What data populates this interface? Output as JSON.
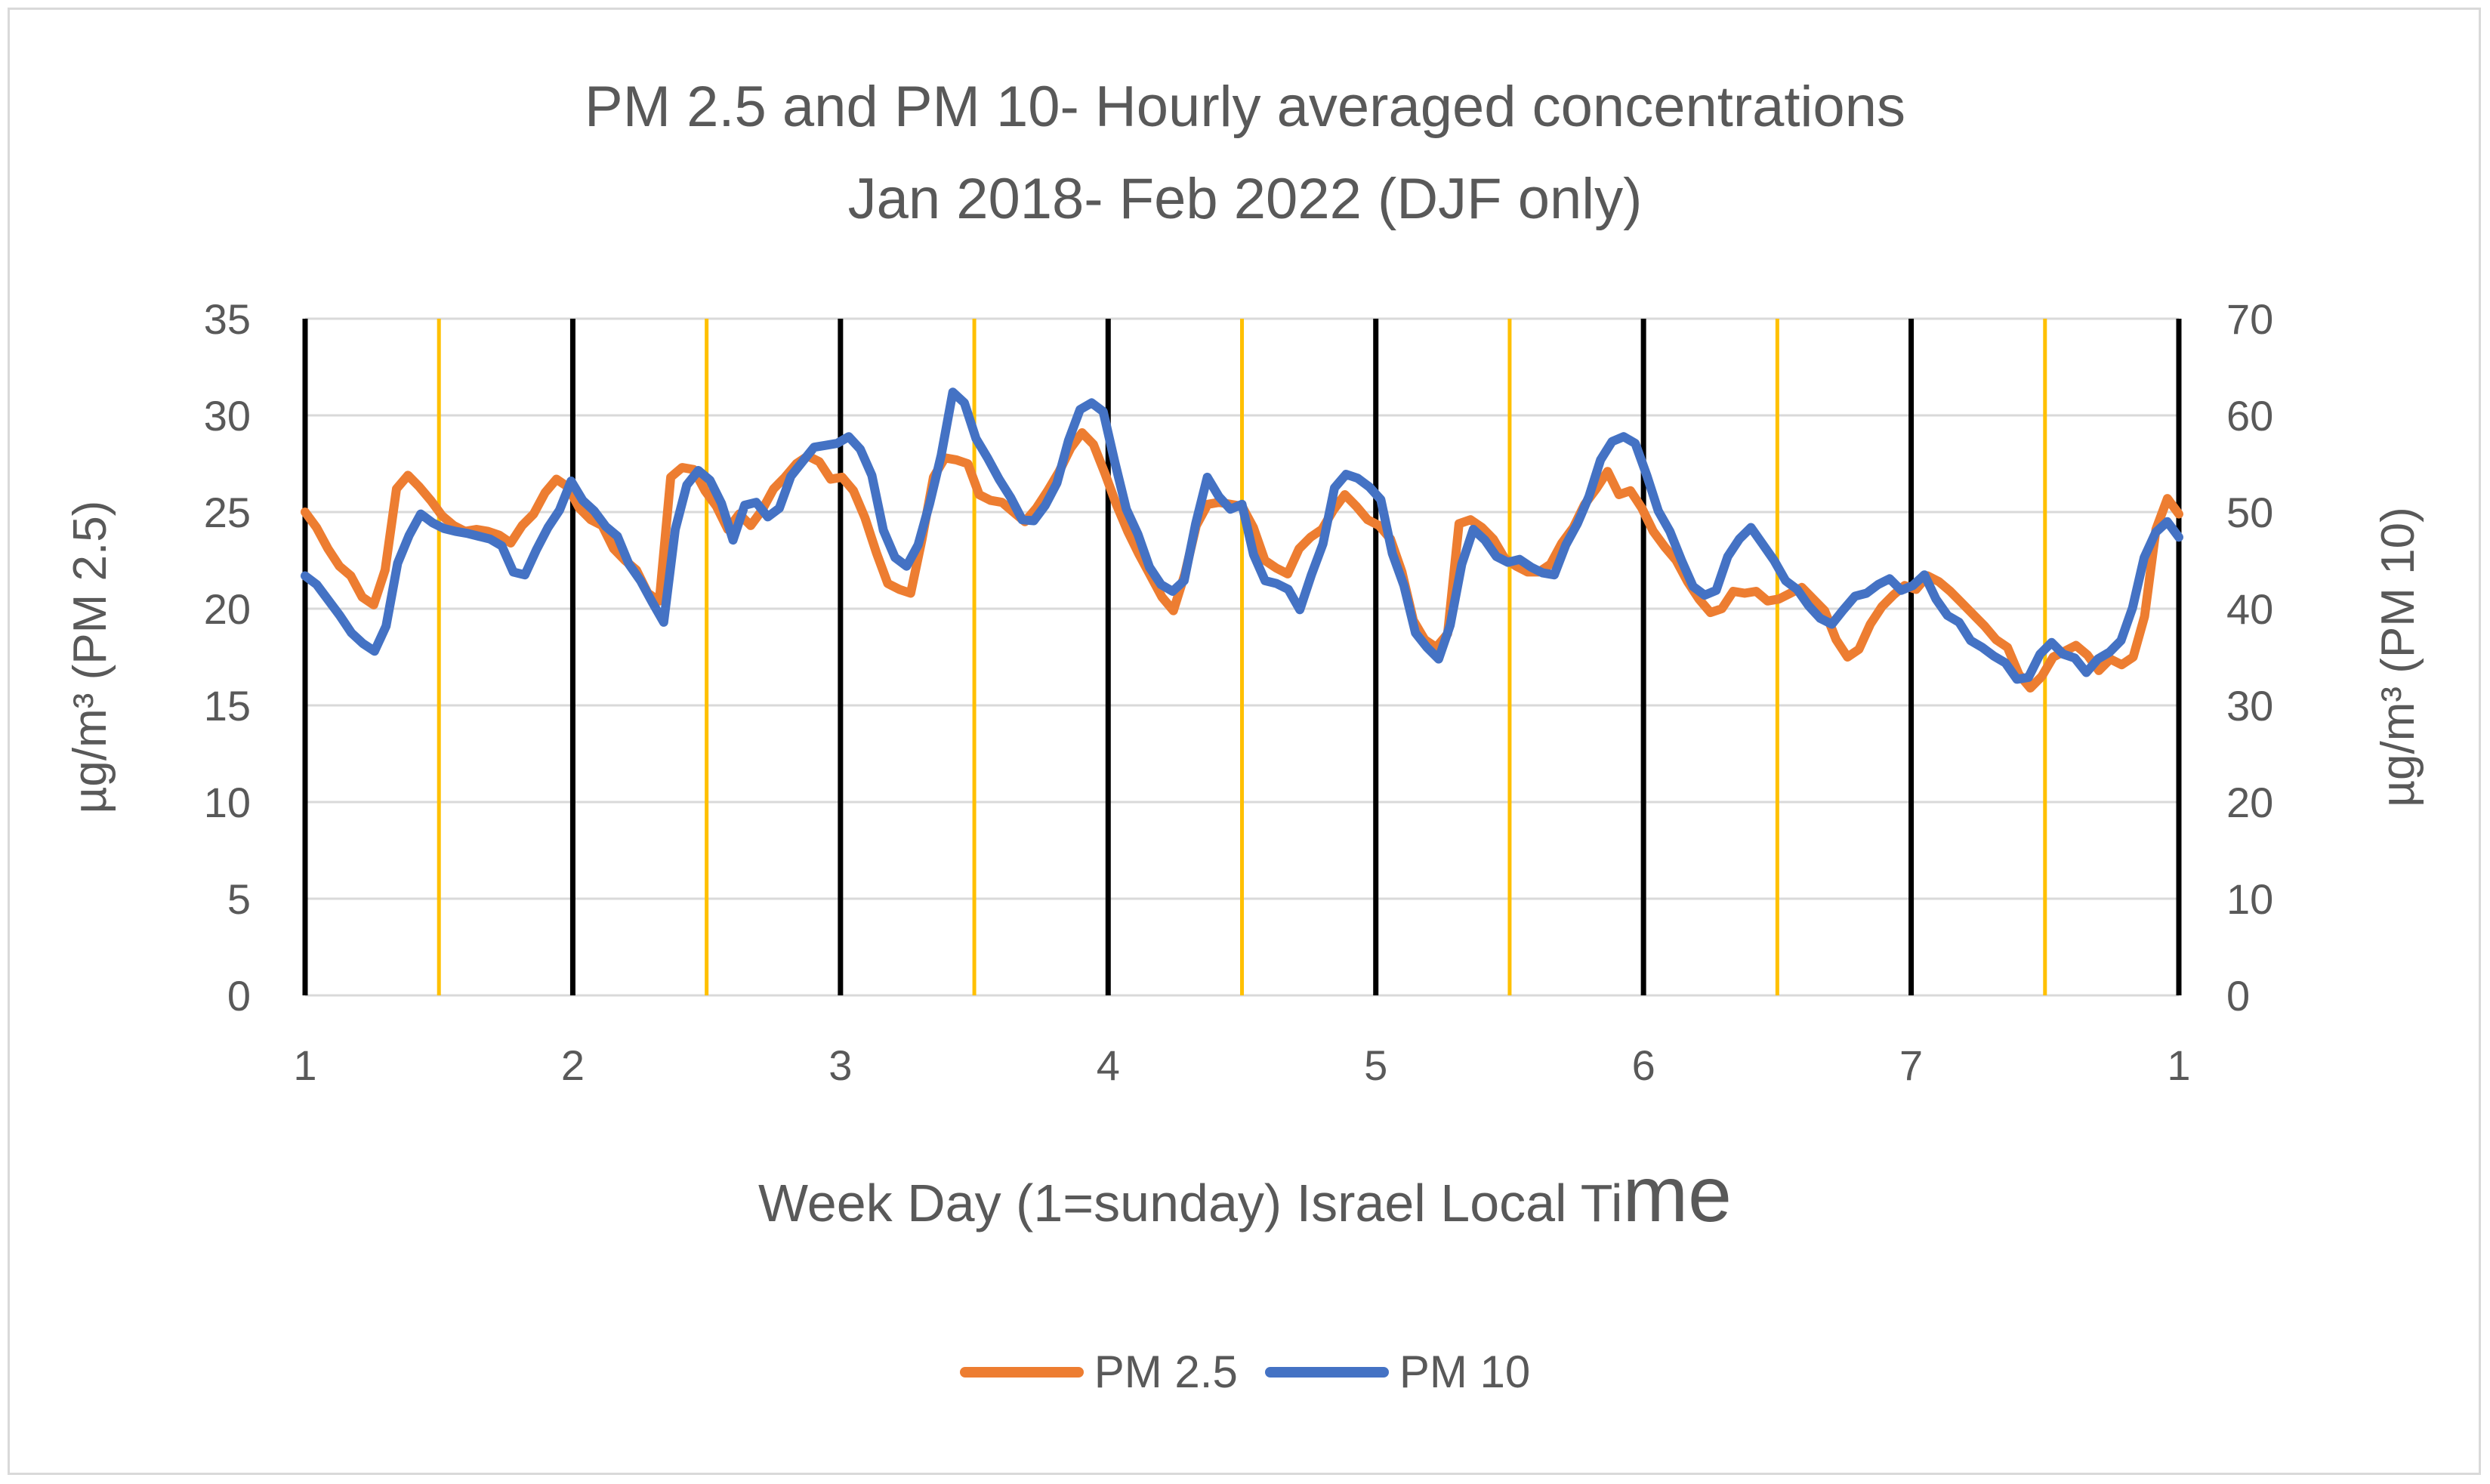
{
  "title_line1": "PM 2.5 and PM 10- Hourly averaged concentrations",
  "title_line2": "Jan 2018- Feb 2022 (DJF only)",
  "colors": {
    "pm25": "#ED7D31",
    "pm10": "#4472C4",
    "day_line": "#000000",
    "noon_line": "#FFC000",
    "grid": "#d9d9d9",
    "text": "#595959"
  },
  "chart_data": {
    "type": "line",
    "title": "PM 2.5 and PM 10- Hourly averaged concentrations Jan 2018- Feb 2022 (DJF only)",
    "xlabel_main": "Week Day (1=sunday) Israel Local Ti",
    "xlabel_tail": "me",
    "ylabel_left": "µg/m³  (PM 2.5)",
    "ylabel_right": "µg/m³  (PM 10)",
    "x_range": [
      0,
      168
    ],
    "x_tick_positions": [
      0,
      24,
      48,
      72,
      96,
      120,
      144,
      168
    ],
    "x_tick_labels": [
      "1",
      "2",
      "3",
      "4",
      "5",
      "6",
      "7",
      "1"
    ],
    "day_lines": [
      0,
      24,
      48,
      72,
      96,
      120,
      144,
      168
    ],
    "noon_lines": [
      12,
      36,
      60,
      84,
      108,
      132,
      156
    ],
    "ylim_left": [
      0,
      35
    ],
    "yticks_left": [
      0,
      5,
      10,
      15,
      20,
      25,
      30,
      35
    ],
    "ylim_right": [
      0,
      70
    ],
    "yticks_right": [
      0,
      10,
      20,
      30,
      40,
      50,
      60,
      70
    ],
    "series": [
      {
        "name": "PM 2.5",
        "axis": "left",
        "color": "#ED7D31",
        "values": [
          25.0,
          24.2,
          23.1,
          22.2,
          21.7,
          20.6,
          20.2,
          22.0,
          26.2,
          26.9,
          26.3,
          25.6,
          24.8,
          24.3,
          24.0,
          24.1,
          24.0,
          23.8,
          23.4,
          24.3,
          24.9,
          26.0,
          26.7,
          26.3,
          25.2,
          24.6,
          24.3,
          23.1,
          22.5,
          22.0,
          20.8,
          20.4,
          26.8,
          27.3,
          27.2,
          26.1,
          25.3,
          24.1,
          24.9,
          24.3,
          25.1,
          26.2,
          26.8,
          27.5,
          27.9,
          27.6,
          26.7,
          26.8,
          26.1,
          24.7,
          22.9,
          21.3,
          21.0,
          20.8,
          23.6,
          26.8,
          27.8,
          27.7,
          27.5,
          25.9,
          25.6,
          25.5,
          25.0,
          24.5,
          25.2,
          26.1,
          27.1,
          28.3,
          29.1,
          28.5,
          27.0,
          25.4,
          24.0,
          22.8,
          21.7,
          20.6,
          19.9,
          21.8,
          24.3,
          25.4,
          25.5,
          25.4,
          25.3,
          24.2,
          22.5,
          22.1,
          21.8,
          23.1,
          23.7,
          24.1,
          25.1,
          25.9,
          25.3,
          24.6,
          24.3,
          23.6,
          21.9,
          19.4,
          18.4,
          18.0,
          18.7,
          24.4,
          24.6,
          24.2,
          23.6,
          22.6,
          22.2,
          21.9,
          21.9,
          22.3,
          23.4,
          24.2,
          25.4,
          26.2,
          27.1,
          25.9,
          26.1,
          25.2,
          24.0,
          23.2,
          22.5,
          21.4,
          20.5,
          19.8,
          20.0,
          20.9,
          20.8,
          20.9,
          20.4,
          20.5,
          20.8,
          21.1,
          20.5,
          19.9,
          18.4,
          17.5,
          17.9,
          19.2,
          20.1,
          20.7,
          21.2,
          21.0,
          21.7,
          21.4,
          20.9,
          20.3,
          19.7,
          19.1,
          18.4,
          18.0,
          16.6,
          15.9,
          16.5,
          17.5,
          17.8,
          18.1,
          17.6,
          16.8,
          17.4,
          17.1,
          17.5,
          19.6,
          24.1,
          25.7,
          24.9
        ]
      },
      {
        "name": "PM 10",
        "axis": "right",
        "color": "#4472C4",
        "values": [
          43.4,
          42.5,
          40.9,
          39.3,
          37.5,
          36.4,
          35.6,
          38.2,
          44.7,
          47.6,
          49.8,
          48.9,
          48.3,
          48.0,
          47.8,
          47.5,
          47.2,
          46.5,
          43.8,
          43.5,
          46.1,
          48.4,
          50.2,
          53.2,
          51.2,
          50.1,
          48.5,
          47.5,
          44.6,
          42.9,
          40.7,
          38.6,
          48.2,
          52.8,
          54.3,
          53.3,
          50.9,
          47.1,
          50.7,
          51.0,
          49.5,
          50.4,
          53.7,
          55.2,
          56.7,
          56.9,
          57.1,
          57.8,
          56.5,
          53.8,
          48.1,
          45.3,
          44.4,
          46.6,
          50.9,
          55.9,
          62.4,
          61.3,
          57.6,
          55.6,
          53.4,
          51.5,
          49.2,
          49.1,
          50.7,
          53.0,
          57.4,
          60.6,
          61.3,
          60.4,
          55.2,
          50.3,
          47.7,
          44.3,
          42.5,
          41.8,
          42.9,
          48.8,
          53.6,
          51.6,
          50.3,
          50.8,
          45.6,
          42.9,
          42.6,
          42.0,
          39.9,
          43.5,
          46.7,
          52.5,
          53.9,
          53.5,
          52.6,
          51.3,
          45.7,
          42.4,
          37.5,
          36.0,
          34.8,
          38.3,
          44.6,
          48.2,
          47.1,
          45.4,
          44.8,
          45.1,
          44.3,
          43.7,
          43.5,
          46.6,
          48.8,
          51.6,
          55.4,
          57.3,
          57.8,
          57.1,
          53.8,
          50.1,
          48.0,
          45.0,
          42.3,
          41.4,
          41.9,
          45.4,
          47.2,
          48.4,
          46.7,
          45.0,
          42.9,
          42.0,
          40.3,
          39.0,
          38.4,
          39.9,
          41.3,
          41.6,
          42.5,
          43.1,
          41.9,
          42.4,
          43.5,
          41.0,
          39.3,
          38.6,
          36.7,
          36.0,
          35.1,
          34.4,
          32.7,
          32.9,
          35.3,
          36.5,
          35.3,
          34.9,
          33.4,
          34.8,
          35.5,
          36.7,
          40.1,
          45.3,
          47.9,
          49.0,
          47.4
        ]
      }
    ]
  }
}
